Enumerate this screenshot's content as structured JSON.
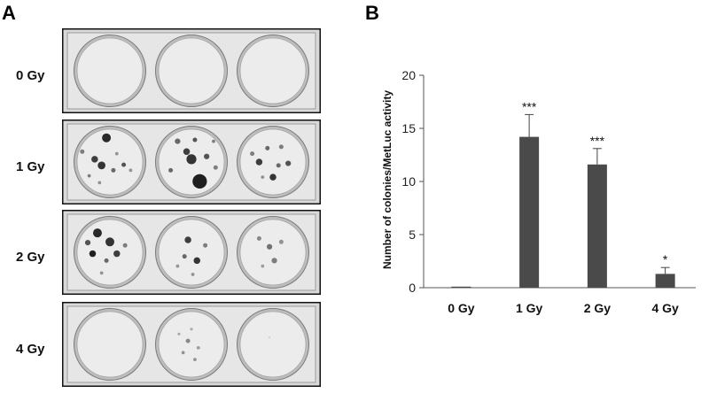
{
  "panels": {
    "a": {
      "letter": "A"
    },
    "b": {
      "letter": "B"
    }
  },
  "plates": [
    {
      "label": "0 Gy",
      "wells": [
        {
          "colonies": []
        },
        {
          "colonies": []
        },
        {
          "colonies": []
        }
      ]
    },
    {
      "label": "1 Gy",
      "wells": [
        {
          "colonies": [
            [
              0.45,
              0.15,
              0.08,
              0.9
            ],
            [
              0.28,
              0.46,
              0.06,
              0.8
            ],
            [
              0.38,
              0.55,
              0.07,
              0.85
            ],
            [
              0.1,
              0.35,
              0.04,
              0.5
            ],
            [
              0.55,
              0.62,
              0.04,
              0.6
            ],
            [
              0.7,
              0.54,
              0.04,
              0.7
            ],
            [
              0.2,
              0.7,
              0.03,
              0.5
            ],
            [
              0.6,
              0.38,
              0.03,
              0.4
            ],
            [
              0.8,
              0.62,
              0.03,
              0.4
            ],
            [
              0.35,
              0.8,
              0.03,
              0.4
            ]
          ]
        },
        {
          "colonies": [
            [
              0.62,
              0.78,
              0.13,
              0.95
            ],
            [
              0.43,
              0.35,
              0.06,
              0.8
            ],
            [
              0.5,
              0.46,
              0.09,
              0.85
            ],
            [
              0.3,
              0.2,
              0.05,
              0.6
            ],
            [
              0.72,
              0.42,
              0.05,
              0.7
            ],
            [
              0.2,
              0.62,
              0.04,
              0.6
            ],
            [
              0.82,
              0.2,
              0.03,
              0.5
            ],
            [
              0.55,
              0.18,
              0.04,
              0.7
            ],
            [
              0.85,
              0.58,
              0.04,
              0.5
            ]
          ]
        },
        {
          "colonies": [
            [
              0.3,
              0.5,
              0.06,
              0.8
            ],
            [
              0.5,
              0.72,
              0.06,
              0.85
            ],
            [
              0.72,
              0.52,
              0.05,
              0.7
            ],
            [
              0.42,
              0.3,
              0.04,
              0.6
            ],
            [
              0.62,
              0.28,
              0.04,
              0.5
            ],
            [
              0.2,
              0.38,
              0.04,
              0.5
            ],
            [
              0.58,
              0.55,
              0.04,
              0.6
            ],
            [
              0.35,
              0.72,
              0.03,
              0.4
            ]
          ]
        }
      ]
    },
    {
      "label": "2 Gy",
      "wells": [
        {
          "colonies": [
            [
              0.32,
              0.22,
              0.08,
              0.9
            ],
            [
              0.5,
              0.35,
              0.08,
              0.85
            ],
            [
              0.25,
              0.52,
              0.06,
              0.95
            ],
            [
              0.18,
              0.36,
              0.05,
              0.7
            ],
            [
              0.6,
              0.52,
              0.06,
              0.8
            ],
            [
              0.45,
              0.62,
              0.04,
              0.6
            ],
            [
              0.72,
              0.4,
              0.04,
              0.5
            ],
            [
              0.38,
              0.8,
              0.03,
              0.4
            ]
          ]
        },
        {
          "colonies": [
            [
              0.45,
              0.32,
              0.06,
              0.8
            ],
            [
              0.58,
              0.62,
              0.06,
              0.85
            ],
            [
              0.4,
              0.56,
              0.04,
              0.6
            ],
            [
              0.7,
              0.4,
              0.04,
              0.5
            ],
            [
              0.3,
              0.7,
              0.03,
              0.4
            ],
            [
              0.52,
              0.82,
              0.03,
              0.4
            ]
          ]
        },
        {
          "colonies": [
            [
              0.3,
              0.3,
              0.04,
              0.45
            ],
            [
              0.45,
              0.42,
              0.05,
              0.55
            ],
            [
              0.62,
              0.35,
              0.04,
              0.4
            ],
            [
              0.52,
              0.62,
              0.05,
              0.5
            ],
            [
              0.35,
              0.7,
              0.03,
              0.35
            ]
          ]
        }
      ]
    },
    {
      "label": "4 Gy",
      "wells": [
        {
          "colonies": []
        },
        {
          "colonies": [
            [
              0.45,
              0.45,
              0.04,
              0.45
            ],
            [
              0.38,
              0.62,
              0.03,
              0.4
            ],
            [
              0.55,
              0.72,
              0.03,
              0.4
            ],
            [
              0.6,
              0.55,
              0.03,
              0.35
            ],
            [
              0.32,
              0.35,
              0.025,
              0.3
            ],
            [
              0.5,
              0.28,
              0.025,
              0.3
            ]
          ]
        },
        {
          "colonies": [
            [
              0.45,
              0.4,
              0.015,
              0.15
            ]
          ]
        }
      ]
    }
  ],
  "chart_data": {
    "type": "bar",
    "categories": [
      "0 Gy",
      "1 Gy",
      "2 Gy",
      "4 Gy"
    ],
    "values": [
      0.1,
      14.2,
      11.6,
      1.3
    ],
    "errors": [
      0.0,
      2.1,
      1.5,
      0.6
    ],
    "annotations": [
      "",
      "***",
      "***",
      "*"
    ],
    "ylabel": "Number of colonies/MetLuc activity",
    "xlabel": "",
    "ylim": [
      0,
      20
    ],
    "yticks": [
      0,
      5,
      10,
      15,
      20
    ],
    "bar_color": "#4a4a4a",
    "grid": false,
    "legend": "none"
  }
}
